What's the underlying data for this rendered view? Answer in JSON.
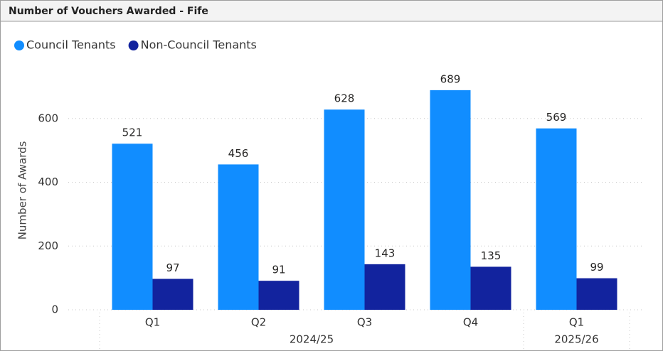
{
  "chart_data": {
    "type": "bar",
    "title": "Number of Vouchers Awarded - Fife",
    "y_label": "Number of Awards",
    "categories": [
      "Q1",
      "Q2",
      "Q3",
      "Q4",
      "Q1"
    ],
    "groups": [
      {
        "label": "2024/25",
        "size": 4
      },
      {
        "label": "2025/26",
        "size": 1
      }
    ],
    "series": [
      {
        "name": "Council Tenants",
        "color": "#118DFF",
        "values": [
          521,
          456,
          628,
          689,
          569
        ]
      },
      {
        "name": "Non-Council Tenants",
        "color": "#12239E",
        "values": [
          97,
          91,
          143,
          135,
          99
        ]
      }
    ],
    "ylim": [
      0,
      750
    ],
    "yticks": [
      0,
      200,
      400,
      600
    ],
    "grid": true,
    "legend": "top-left"
  }
}
